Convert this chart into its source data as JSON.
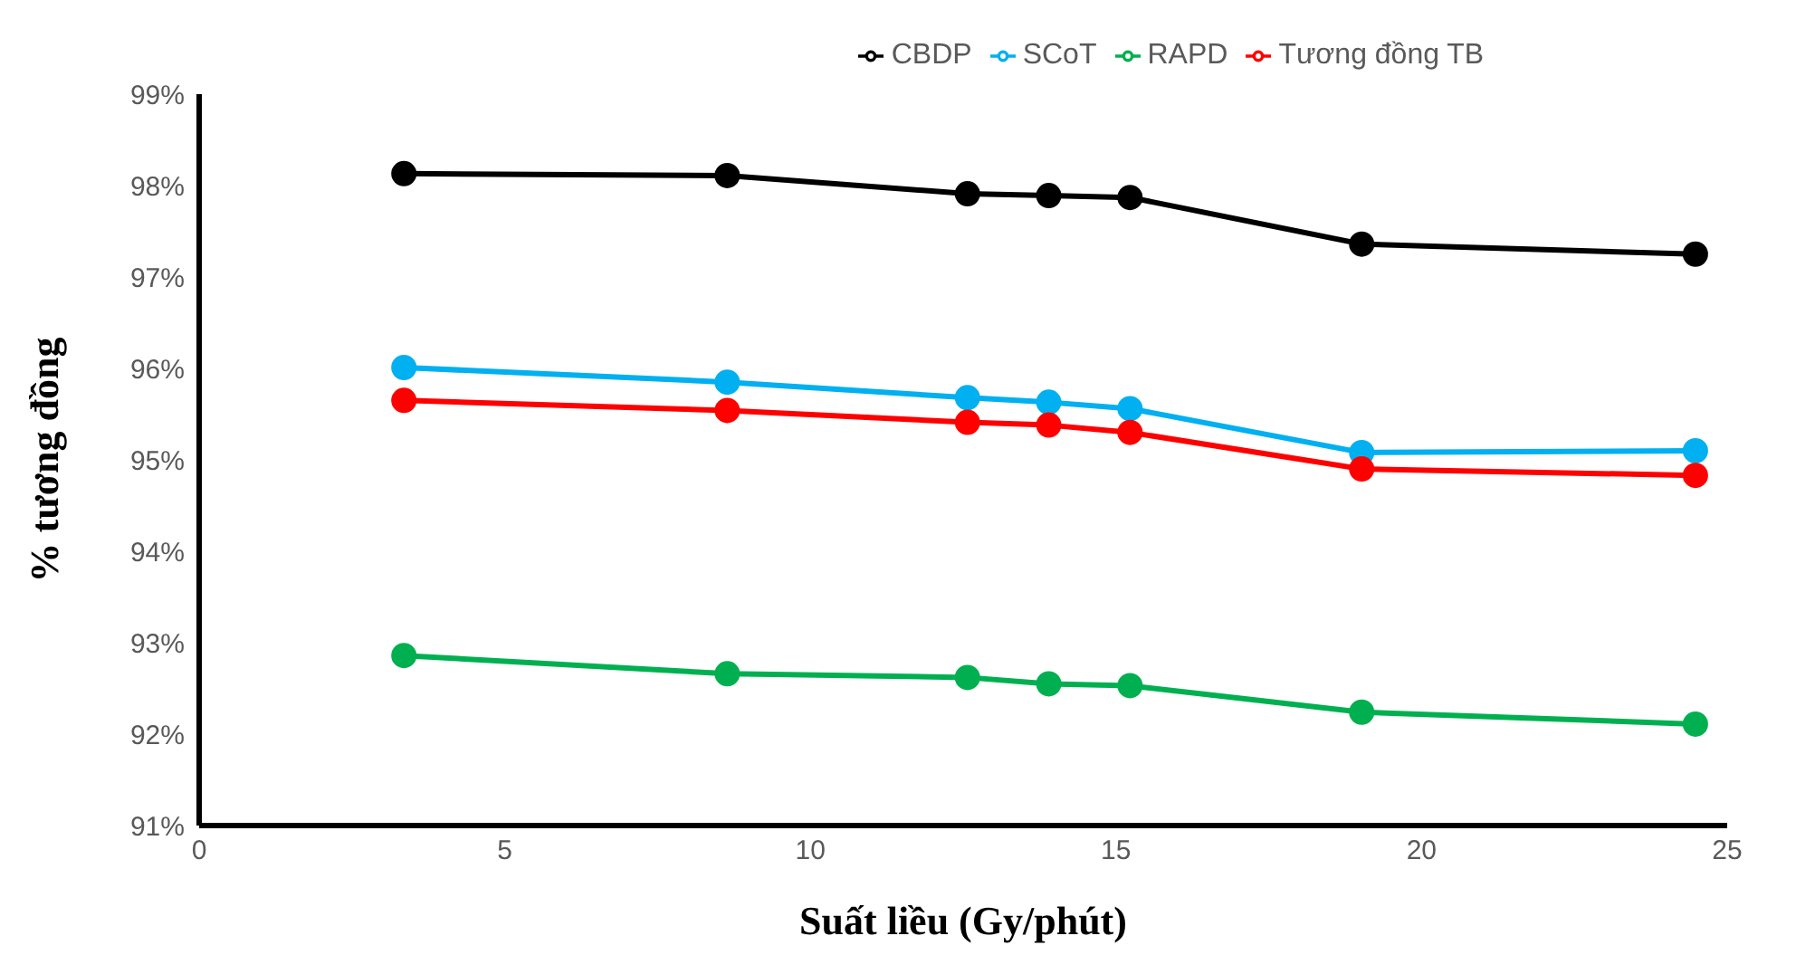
{
  "chart_data": {
    "type": "line",
    "xlabel": "Suất liều (Gy/phút)",
    "ylabel": "% tương đồng",
    "x": [
      3.35,
      8.64,
      12.57,
      13.9,
      15.23,
      19.02,
      24.48
    ],
    "series": [
      {
        "name": "CBDP",
        "color": "#000000",
        "values": [
          98.13,
          98.11,
          97.91,
          97.89,
          97.87,
          97.36,
          97.25
        ]
      },
      {
        "name": "SCoT",
        "color": "#00b0f0",
        "values": [
          96.01,
          95.85,
          95.68,
          95.63,
          95.56,
          95.08,
          95.1
        ]
      },
      {
        "name": "RAPD",
        "color": "#00b050",
        "values": [
          92.86,
          92.66,
          92.62,
          92.55,
          92.53,
          92.24,
          92.11
        ]
      },
      {
        "name": "Tương đồng TB",
        "color": "#ff0000",
        "values": [
          95.65,
          95.54,
          95.41,
          95.38,
          95.3,
          94.9,
          94.83
        ]
      }
    ],
    "xlim": [
      0,
      25
    ],
    "xticks": [
      0,
      5,
      10,
      15,
      20,
      25
    ],
    "ylim": [
      91,
      99
    ],
    "yticks": [
      {
        "value": 91,
        "label": "91%"
      },
      {
        "value": 92,
        "label": "92%"
      },
      {
        "value": 93,
        "label": "93%"
      },
      {
        "value": 94,
        "label": "94%"
      },
      {
        "value": 95,
        "label": "95%"
      },
      {
        "value": 96,
        "label": "96%"
      },
      {
        "value": 97,
        "label": "97%"
      },
      {
        "value": 98,
        "label": "98%"
      },
      {
        "value": 99,
        "label": "99%"
      }
    ],
    "legend": "top",
    "marker": "circle",
    "line_style": "solid",
    "grid": false
  }
}
